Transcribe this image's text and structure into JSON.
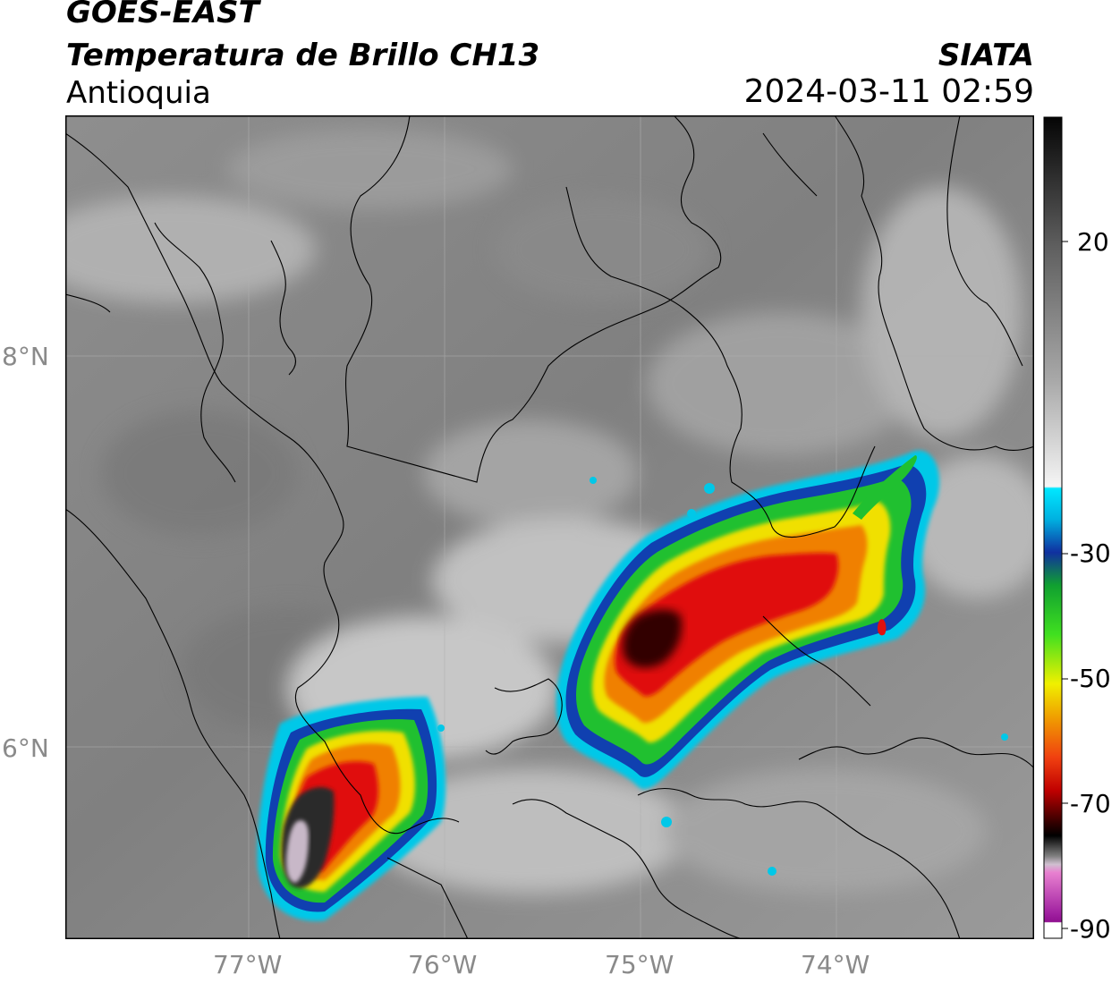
{
  "header": {
    "satellite": "GOES-EAST",
    "product": "Temperatura de Brillo CH13",
    "region": "Antioquia",
    "organization": "SIATA",
    "timestamp": "2024-03-11 02:59"
  },
  "axes": {
    "x_ticks": [
      "77°W",
      "76°W",
      "75°W",
      "74°W"
    ],
    "y_ticks": [
      "8°N",
      "6°N"
    ]
  },
  "colorbar": {
    "ticks": [
      "20",
      "-30",
      "-50",
      "-70",
      "-90"
    ],
    "colors": {
      "warm_black": "#0a0a0a",
      "gray_mid": "#8c8c8c",
      "white": "#f5f5f5",
      "cyan": "#00d8f0",
      "blue": "#1030a0",
      "green": "#10c020",
      "yellow": "#f0e000",
      "orange": "#f08000",
      "red": "#e01010",
      "dark_red": "#400000",
      "pink": "#e070c0",
      "purple": "#901090"
    }
  }
}
